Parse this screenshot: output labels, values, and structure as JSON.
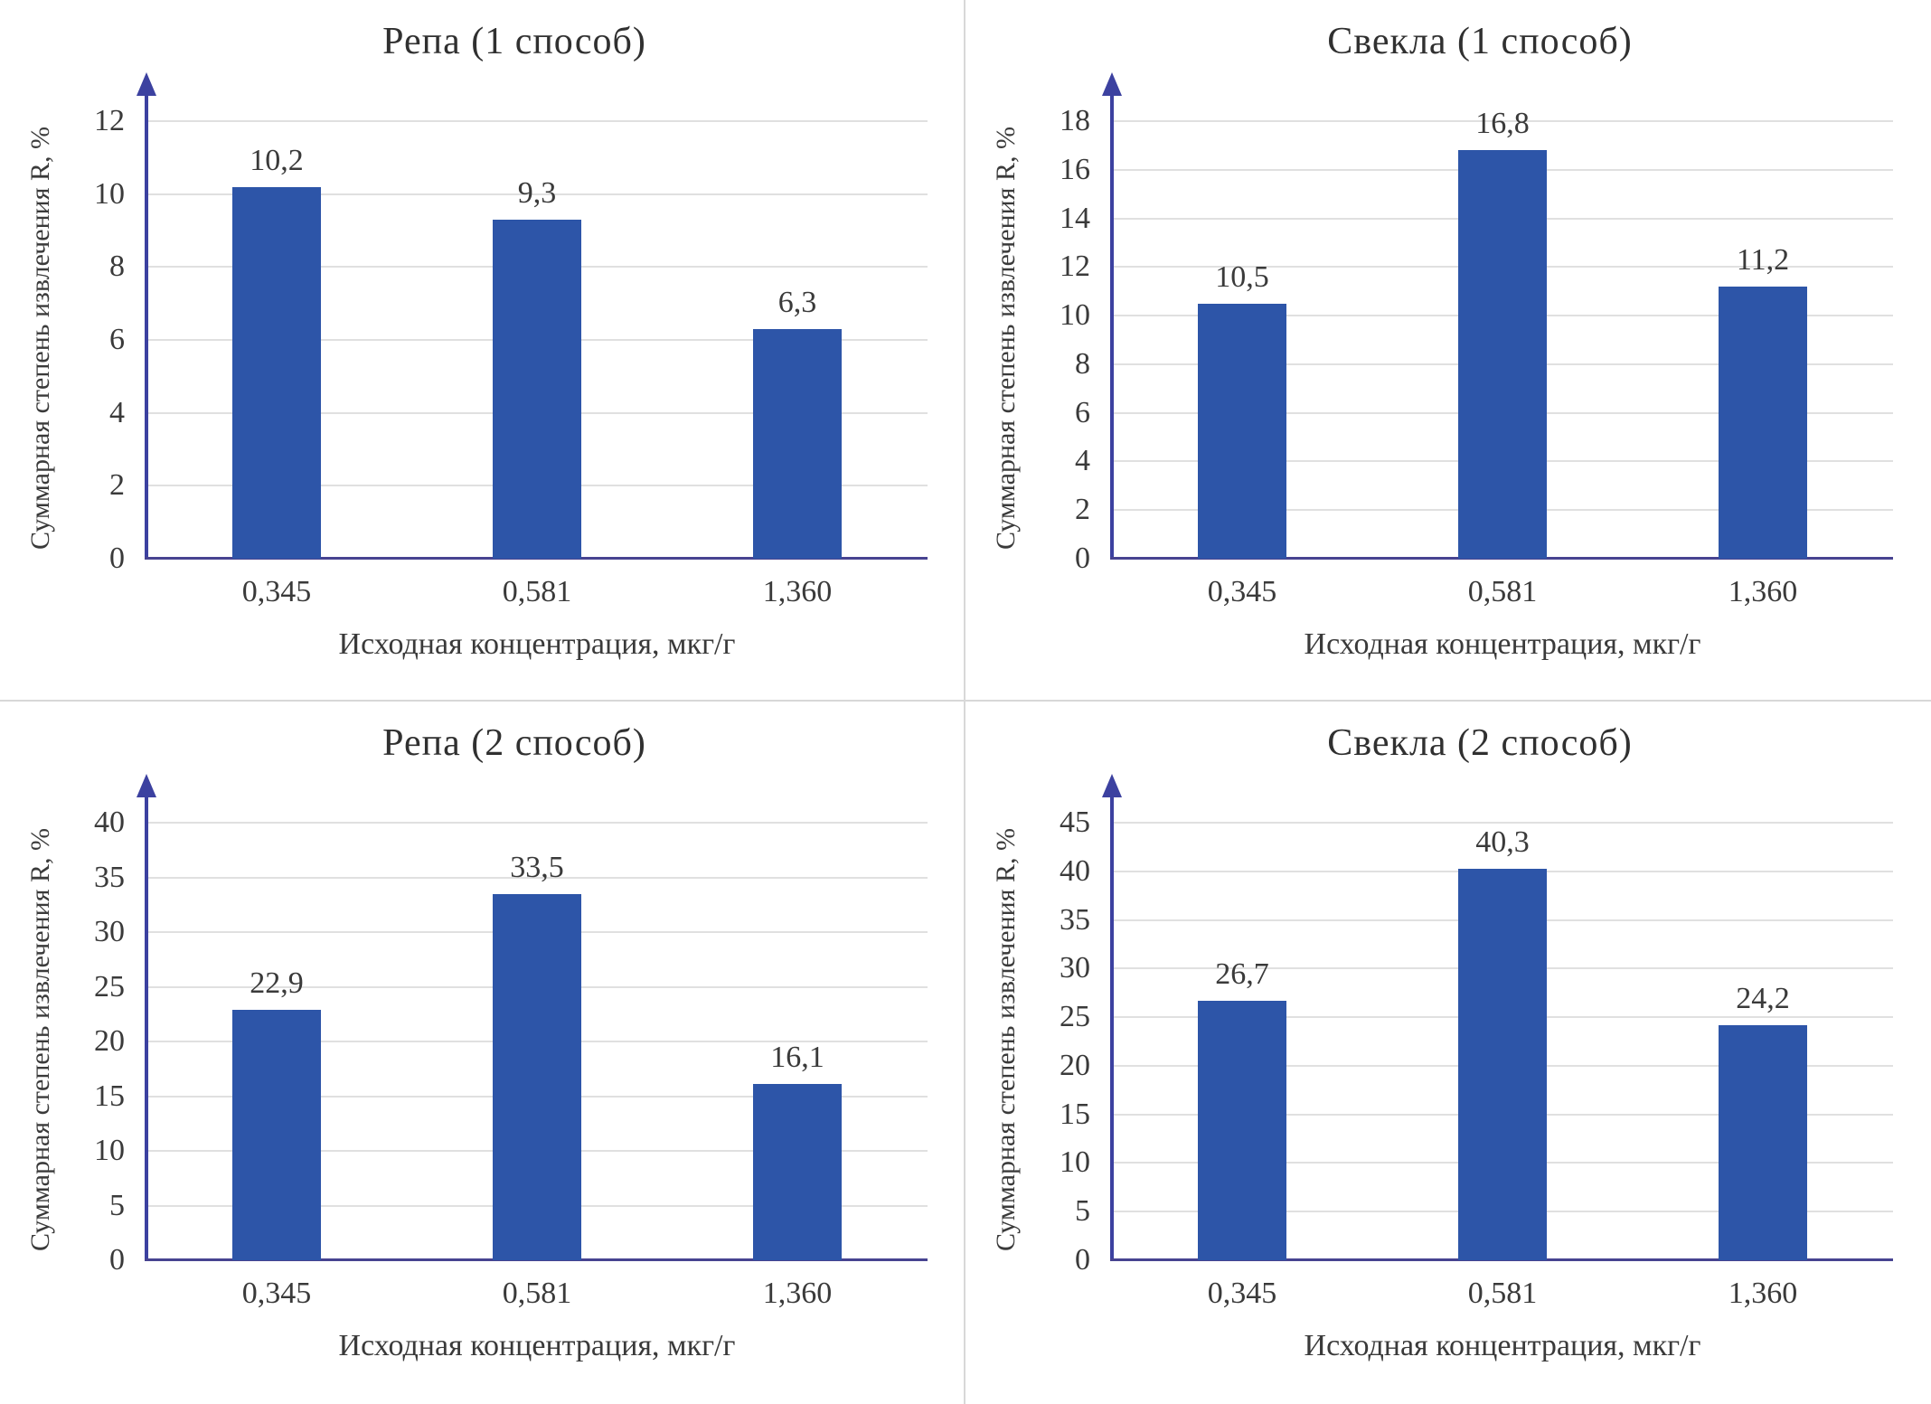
{
  "page": {
    "background": "#ffffff",
    "divider_color": "#d8d8d8"
  },
  "style": {
    "bar_color": "#2d55a8",
    "y_axis_color": "#3c41a0",
    "x_axis_color": "#474390",
    "grid_color": "#e0e0e0",
    "text_color": "#3a3a3a"
  },
  "chart_data": [
    {
      "type": "bar",
      "title": "Репа (1 способ)",
      "categories": [
        "0,345",
        "0,581",
        "1,360"
      ],
      "values": [
        10.2,
        9.3,
        6.3
      ],
      "value_labels": [
        "10,2",
        "9,3",
        "6,3"
      ],
      "xlabel": "Исходная концентрация, мкг/г",
      "ylabel": "Суммарная степень извлечения R, %",
      "ylim": [
        0,
        12
      ],
      "yticks": [
        0,
        2,
        4,
        6,
        8,
        10,
        12
      ],
      "grid": true,
      "legend": false
    },
    {
      "type": "bar",
      "title": "Свекла (1 способ)",
      "categories": [
        "0,345",
        "0,581",
        "1,360"
      ],
      "values": [
        10.5,
        16.8,
        11.2
      ],
      "value_labels": [
        "10,5",
        "16,8",
        "11,2"
      ],
      "xlabel": "Исходная концентрация, мкг/г",
      "ylabel": "Суммарная степень извлечения R, %",
      "ylim": [
        0,
        18
      ],
      "yticks": [
        0,
        2,
        4,
        6,
        8,
        10,
        12,
        14,
        16,
        18
      ],
      "grid": true,
      "legend": false
    },
    {
      "type": "bar",
      "title": "Репа (2 способ)",
      "categories": [
        "0,345",
        "0,581",
        "1,360"
      ],
      "values": [
        22.9,
        33.5,
        16.1
      ],
      "value_labels": [
        "22,9",
        "33,5",
        "16,1"
      ],
      "xlabel": "Исходная концентрация, мкг/г",
      "ylabel": "Суммарная степень извлечения R, %",
      "ylim": [
        0,
        40
      ],
      "yticks": [
        0,
        5,
        10,
        15,
        20,
        25,
        30,
        35,
        40
      ],
      "grid": true,
      "legend": false
    },
    {
      "type": "bar",
      "title": "Свекла (2 способ)",
      "categories": [
        "0,345",
        "0,581",
        "1,360"
      ],
      "values": [
        26.7,
        40.3,
        24.2
      ],
      "value_labels": [
        "26,7",
        "40,3",
        "24,2"
      ],
      "xlabel": "Исходная концентрация, мкг/г",
      "ylabel": "Суммарная степень извлечения R, %",
      "ylim": [
        0,
        45
      ],
      "yticks": [
        0,
        5,
        10,
        15,
        20,
        25,
        30,
        35,
        40,
        45
      ],
      "grid": true,
      "legend": false
    }
  ]
}
